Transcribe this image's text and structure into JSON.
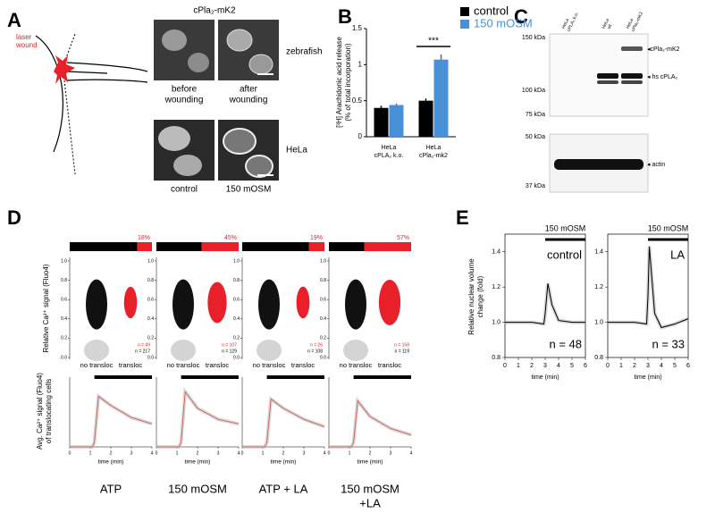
{
  "panel_a": {
    "letter": "A",
    "laser": [
      "laser",
      "wound"
    ],
    "title": "cPla₂-mK2",
    "row_labels": [
      "zebrafish",
      "HeLa"
    ],
    "captions": [
      [
        "before",
        "wounding"
      ],
      [
        "after",
        "wounding"
      ],
      [
        "control"
      ],
      [
        "150 mOSM"
      ]
    ]
  },
  "panel_c": {
    "letter": "C",
    "lanes": [
      [
        "HeLa",
        "cPLA₂ k.o."
      ],
      [
        "HeLa",
        "wt"
      ],
      [
        "HeLa",
        "cPla₂-mK2"
      ]
    ],
    "markers": [
      "150 kDa",
      "100 kDa",
      "75 kDa",
      "50 kDa",
      "37 kDa"
    ],
    "bands": [
      "◂cPla₂-mK2",
      "◂ hs cPLA₂",
      "◂ actin"
    ]
  },
  "panel_d": {
    "letter": "D",
    "ylabel_top": "Relative Ca²⁺ signal (Fluo4)",
    "ylabel_bottom": [
      "Avg. Ca²⁺ signal (Fluo4)",
      "of translocating cells"
    ]
  },
  "panel_e": {
    "letter": "E",
    "ylabel": [
      "Relative nuclear volume",
      "change (fold)"
    ]
  },
  "chart_data": [
    {
      "type": "bar",
      "letter": "B",
      "ylabel": [
        "[³H] Arachidonic acid release",
        "(% of total incorporation)"
      ],
      "categories": [
        [
          "HeLa",
          "cPLA₂ k.o."
        ],
        [
          "HeLa",
          "cPla₂-mk2"
        ]
      ],
      "series": [
        {
          "name": "control",
          "color": "#000000",
          "values": [
            0.4,
            0.5
          ],
          "errors": [
            0.03,
            0.03
          ]
        },
        {
          "name": "150 mOSM",
          "color": "#4a90d9",
          "values": [
            0.44,
            1.07
          ],
          "errors": [
            0.02,
            0.07
          ]
        }
      ],
      "ylim": [
        0,
        1.5
      ],
      "yticks": [
        0,
        0.5,
        1,
        1.5
      ],
      "annotation": "***"
    },
    {
      "type": "line",
      "title": [
        "ATP"
      ],
      "fraction": {
        "values": [
          18
        ],
        "value_labels": [
          "18%"
        ]
      },
      "n_labels": [
        "n = 49",
        "n = 217"
      ],
      "scatter_categories": [
        "no transloc",
        "transloc"
      ],
      "scatter_ylim": [
        0,
        1
      ],
      "scatter_yticks": [
        {
          "value": 0,
          "label": "0.0"
        },
        0.2,
        0.4,
        0.6,
        0.8,
        {
          "value": 1,
          "label": "1.0"
        }
      ],
      "x": [
        0,
        1.1,
        1.2,
        1.4,
        2,
        3,
        4
      ],
      "values": [
        0,
        0,
        0.05,
        0.55,
        0.45,
        0.32,
        0.25
      ],
      "color": "#d9534f",
      "stimulus_span": [
        1.2,
        4
      ],
      "xlim": [
        0,
        4
      ],
      "xticks": [
        0,
        1,
        2,
        3,
        4
      ],
      "ylim": [
        0,
        0.7
      ],
      "xlabel": "time (min)"
    },
    {
      "type": "line",
      "title": [
        "150 mOSM"
      ],
      "fraction": {
        "values": [
          45
        ],
        "value_labels": [
          "45%"
        ]
      },
      "n_labels": [
        "n = 107",
        "n = 129"
      ],
      "scatter_categories": [
        "no transloc",
        "transloc"
      ],
      "scatter_ylim": [
        0,
        1
      ],
      "scatter_yticks": [
        {
          "value": 0,
          "label": "0.0"
        },
        0.2,
        0.4,
        0.6,
        0.8,
        {
          "value": 1,
          "label": "1.0"
        }
      ],
      "x": [
        0,
        1.1,
        1.2,
        1.4,
        2,
        3,
        4
      ],
      "values": [
        0,
        0,
        0.05,
        0.6,
        0.42,
        0.3,
        0.25
      ],
      "color": "#d9534f",
      "stimulus_span": [
        1.2,
        4
      ],
      "xlim": [
        0,
        4
      ],
      "xticks": [
        0,
        1,
        2,
        3,
        4
      ],
      "ylim": [
        0,
        0.7
      ],
      "xlabel": "time (min)"
    },
    {
      "type": "line",
      "title": [
        "ATP + LA"
      ],
      "fraction": {
        "values": [
          19
        ],
        "value_labels": [
          "19%"
        ]
      },
      "n_labels": [
        "n = 26",
        "n = 108"
      ],
      "scatter_categories": [
        "no transloc",
        "transloc"
      ],
      "scatter_ylim": [
        0,
        1
      ],
      "scatter_yticks": [
        {
          "value": 0,
          "label": "0.0"
        },
        0.2,
        0.4,
        0.6,
        0.8,
        {
          "value": 1,
          "label": "1.0"
        }
      ],
      "x": [
        0,
        1.1,
        1.2,
        1.4,
        2,
        3,
        4
      ],
      "values": [
        0,
        0,
        0.05,
        0.52,
        0.42,
        0.3,
        0.22
      ],
      "color": "#d9534f",
      "stimulus_span": [
        1.2,
        4
      ],
      "xlim": [
        0,
        4
      ],
      "xticks": [
        0,
        1,
        2,
        3,
        4
      ],
      "ylim": [
        0,
        0.7
      ],
      "xlabel": "time (min)"
    },
    {
      "type": "line",
      "title": [
        "150 mOSM",
        "+LA"
      ],
      "fraction": {
        "values": [
          57
        ],
        "value_labels": [
          "57%"
        ]
      },
      "n_labels": [
        "n = 158",
        "n = 119"
      ],
      "scatter_categories": [
        "no transloc",
        "transloc"
      ],
      "scatter_ylim": [
        0,
        1
      ],
      "scatter_yticks": [
        {
          "value": 0,
          "label": "0.0"
        },
        0.2,
        0.4,
        0.6,
        0.8,
        {
          "value": 1,
          "label": "1.0"
        }
      ],
      "x": [
        0,
        1.1,
        1.2,
        1.4,
        2,
        3,
        4
      ],
      "values": [
        0,
        0,
        0.05,
        0.5,
        0.33,
        0.2,
        0.13
      ],
      "color": "#d9534f",
      "stimulus_span": [
        1.2,
        4
      ],
      "xlim": [
        0,
        4
      ],
      "xticks": [
        0,
        1,
        2,
        3,
        4
      ],
      "ylim": [
        0,
        0.7
      ],
      "xlabel": "time (min)"
    },
    {
      "type": "line",
      "title": "control",
      "stimulus": "150 mOSM",
      "stimulus_span": [
        3,
        6
      ],
      "n_label": "n = 48",
      "x": [
        0,
        1,
        2,
        2.9,
        3,
        3.2,
        3.5,
        4,
        5,
        6
      ],
      "values": [
        1.0,
        1.0,
        1.0,
        0.99,
        1.05,
        1.22,
        1.1,
        1.01,
        1.0,
        1.0
      ],
      "color": "#000000",
      "xlim": [
        0,
        6
      ],
      "xticks": [
        0,
        1,
        2,
        3,
        4,
        5,
        6
      ],
      "ylim": [
        0.8,
        1.5
      ],
      "yticks": [
        0.8,
        {
          "value": 1,
          "label": "1.0"
        },
        1.2,
        1.4
      ],
      "xlabel": "time (min)"
    },
    {
      "type": "line",
      "title": "LA",
      "stimulus": "150 mOSM",
      "stimulus_span": [
        3,
        6
      ],
      "n_label": "n = 33",
      "x": [
        0,
        1,
        2,
        2.9,
        3,
        3.1,
        3.5,
        4,
        5,
        6
      ],
      "values": [
        1.0,
        1.0,
        1.0,
        0.99,
        1.15,
        1.43,
        1.05,
        0.97,
        0.99,
        1.02
      ],
      "color": "#000000",
      "xlim": [
        0,
        6
      ],
      "xticks": [
        0,
        1,
        2,
        3,
        4,
        5,
        6
      ],
      "ylim": [
        0.8,
        1.5
      ],
      "yticks": [
        0.8,
        {
          "value": 1,
          "label": "1.0"
        },
        1.2,
        1.4
      ],
      "xlabel": "time (min)"
    }
  ]
}
